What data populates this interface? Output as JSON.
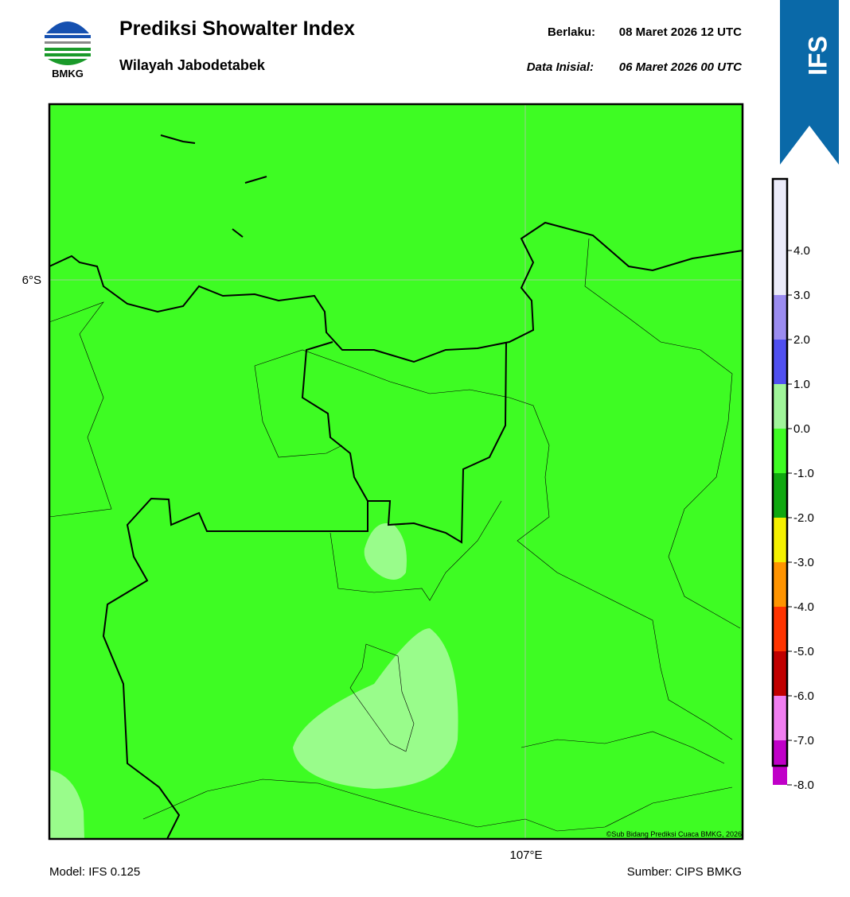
{
  "header": {
    "title": "Prediksi Showalter Index",
    "subtitle": "Wilayah Jabodetabek",
    "valid_label": "Berlaku:",
    "valid_time": "08 Maret 2026 12 UTC",
    "init_label": "Data Inisial:",
    "init_time": "06 Maret 2026 00 UTC",
    "logo_text": "BMKG",
    "model_badge": "IFS"
  },
  "map": {
    "lat_label": "6°S",
    "lon_label": "107°E",
    "credit": "©Sub Bidang Prediksi Cuaca BMKG, 2026"
  },
  "colorbar": {
    "labels": [
      "4.0",
      "3.0",
      "2.0",
      "1.0",
      "0.0",
      "-1.0",
      "-2.0",
      "-3.0",
      "-4.0",
      "-5.0",
      "-6.0",
      "-7.0",
      "-8.0"
    ],
    "colors": [
      "#ececfa",
      "#9b8cf0",
      "#5050f0",
      "#a0f59a",
      "#3efc23",
      "#10a810",
      "#f4f000",
      "#ff9400",
      "#ff3400",
      "#c00000",
      "#f07ef0",
      "#c000c8",
      "#602070"
    ]
  },
  "footer": {
    "model": "Model: IFS 0.125",
    "source": "Sumber: CIPS BMKG"
  }
}
